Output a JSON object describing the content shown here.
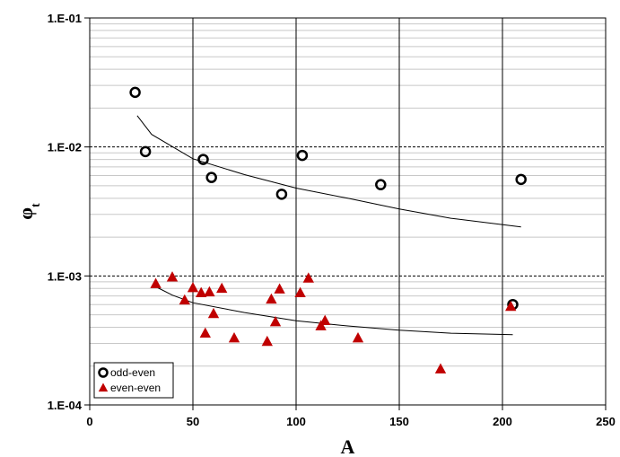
{
  "chart_data": {
    "type": "scatter",
    "title": "",
    "xlabel": "A",
    "ylabel": "φ",
    "ylabel_subscript": "t",
    "xlim": [
      0,
      250
    ],
    "ylim": [
      0.0001,
      0.1
    ],
    "yscale": "log",
    "x_ticks": [
      0,
      50,
      100,
      150,
      200,
      250
    ],
    "x_tick_labels": [
      "0",
      "50",
      "100",
      "150",
      "200",
      "250"
    ],
    "y_ticks": [
      0.0001,
      0.001,
      0.01,
      0.1
    ],
    "y_tick_labels": [
      "1.E-04",
      "1.E-03",
      "1.E-02",
      "1.E-01"
    ],
    "grid": "vertical major lines, dashed horizontal decade lines, light gray minor horizontal lines",
    "legend_position": "bottom-left",
    "series": [
      {
        "name": "odd-even",
        "marker": "open-circle",
        "color": "#000000",
        "points": [
          {
            "x": 22,
            "y": 0.0265
          },
          {
            "x": 27,
            "y": 0.0092
          },
          {
            "x": 55,
            "y": 0.008
          },
          {
            "x": 59,
            "y": 0.0058
          },
          {
            "x": 93,
            "y": 0.0043
          },
          {
            "x": 103,
            "y": 0.0086
          },
          {
            "x": 141,
            "y": 0.0051
          },
          {
            "x": 205,
            "y": 0.0006
          },
          {
            "x": 209,
            "y": 0.0056
          }
        ]
      },
      {
        "name": "even-even",
        "marker": "filled-triangle",
        "color": "#c00000",
        "points": [
          {
            "x": 32,
            "y": 0.00087
          },
          {
            "x": 40,
            "y": 0.00098
          },
          {
            "x": 46,
            "y": 0.00065
          },
          {
            "x": 50,
            "y": 0.00081
          },
          {
            "x": 54,
            "y": 0.00074
          },
          {
            "x": 56,
            "y": 0.00036
          },
          {
            "x": 58,
            "y": 0.00075
          },
          {
            "x": 60,
            "y": 0.00051
          },
          {
            "x": 64,
            "y": 0.0008
          },
          {
            "x": 70,
            "y": 0.00033
          },
          {
            "x": 86,
            "y": 0.00031
          },
          {
            "x": 88,
            "y": 0.00066
          },
          {
            "x": 90,
            "y": 0.00044
          },
          {
            "x": 92,
            "y": 0.00079
          },
          {
            "x": 102,
            "y": 0.00074
          },
          {
            "x": 106,
            "y": 0.00096
          },
          {
            "x": 112,
            "y": 0.00041
          },
          {
            "x": 114,
            "y": 0.00045
          },
          {
            "x": 130,
            "y": 0.00033
          },
          {
            "x": 170,
            "y": 0.00019
          },
          {
            "x": 204,
            "y": 0.00058
          }
        ]
      }
    ],
    "trend_lines": [
      {
        "series": "odd-even",
        "color": "#000000",
        "points": [
          {
            "x": 23,
            "y": 0.0175
          },
          {
            "x": 30,
            "y": 0.0125
          },
          {
            "x": 50,
            "y": 0.0081
          },
          {
            "x": 75,
            "y": 0.0061
          },
          {
            "x": 100,
            "y": 0.0048
          },
          {
            "x": 125,
            "y": 0.004
          },
          {
            "x": 150,
            "y": 0.0033
          },
          {
            "x": 175,
            "y": 0.0028
          },
          {
            "x": 209,
            "y": 0.0024
          }
        ]
      },
      {
        "series": "even-even",
        "color": "#000000",
        "points": [
          {
            "x": 33,
            "y": 0.00081
          },
          {
            "x": 40,
            "y": 0.00071
          },
          {
            "x": 50,
            "y": 0.00062
          },
          {
            "x": 75,
            "y": 0.00052
          },
          {
            "x": 100,
            "y": 0.00045
          },
          {
            "x": 125,
            "y": 0.00041
          },
          {
            "x": 150,
            "y": 0.00038
          },
          {
            "x": 175,
            "y": 0.00036
          },
          {
            "x": 205,
            "y": 0.00035
          }
        ]
      }
    ]
  }
}
